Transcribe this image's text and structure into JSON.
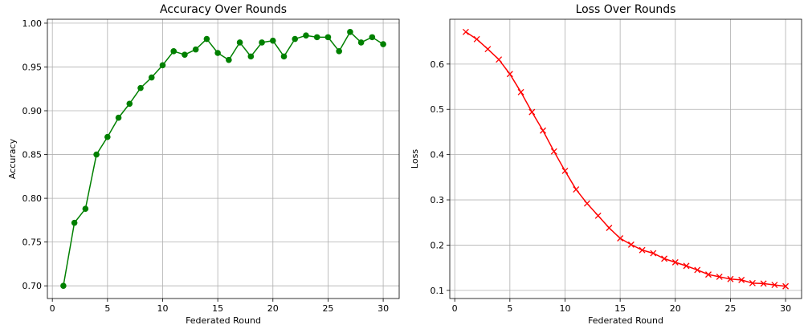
{
  "chart_data": [
    {
      "type": "line",
      "title": "Accuracy Over Rounds",
      "xlabel": "Federated Round",
      "ylabel": "Accuracy",
      "xlim": [
        -0.45,
        31.45
      ],
      "ylim": [
        0.6855,
        1.0045
      ],
      "xticks": [
        0,
        5,
        10,
        15,
        20,
        25,
        30
      ],
      "yticks": [
        0.7,
        0.75,
        0.8,
        0.85,
        0.9,
        0.95,
        1.0
      ],
      "ytick_labels": [
        "0.70",
        "0.75",
        "0.80",
        "0.85",
        "0.90",
        "0.95",
        "1.00"
      ],
      "grid": true,
      "marker": "circle",
      "color": "#008000",
      "series": [
        {
          "x": [
            1,
            2,
            3,
            4,
            5,
            6,
            7,
            8,
            9,
            10,
            11,
            12,
            13,
            14,
            15,
            16,
            17,
            18,
            19,
            20,
            21,
            22,
            23,
            24,
            25,
            26,
            27,
            28,
            29,
            30
          ],
          "values": [
            0.7,
            0.772,
            0.788,
            0.85,
            0.87,
            0.892,
            0.908,
            0.926,
            0.938,
            0.952,
            0.968,
            0.964,
            0.97,
            0.982,
            0.966,
            0.958,
            0.978,
            0.962,
            0.978,
            0.98,
            0.962,
            0.982,
            0.986,
            0.984,
            0.984,
            0.968,
            0.99,
            0.978,
            0.984,
            0.976
          ]
        }
      ]
    },
    {
      "type": "line",
      "title": "Loss Over Rounds",
      "xlabel": "Federated Round",
      "ylabel": "Loss",
      "xlim": [
        -0.45,
        31.45
      ],
      "ylim": [
        0.082,
        0.699
      ],
      "xticks": [
        0,
        5,
        10,
        15,
        20,
        25,
        30
      ],
      "yticks": [
        0.1,
        0.2,
        0.3,
        0.4,
        0.5,
        0.6
      ],
      "ytick_labels": [
        "0.1",
        "0.2",
        "0.3",
        "0.4",
        "0.5",
        "0.6"
      ],
      "grid": true,
      "marker": "x",
      "color": "#ff0000",
      "series": [
        {
          "x": [
            1,
            2,
            3,
            4,
            5,
            6,
            7,
            8,
            9,
            10,
            11,
            12,
            13,
            14,
            15,
            16,
            17,
            18,
            19,
            20,
            21,
            22,
            23,
            24,
            25,
            26,
            27,
            28,
            29,
            30
          ],
          "values": [
            0.671,
            0.655,
            0.633,
            0.61,
            0.578,
            0.538,
            0.494,
            0.453,
            0.407,
            0.364,
            0.323,
            0.292,
            0.265,
            0.238,
            0.215,
            0.201,
            0.189,
            0.182,
            0.17,
            0.162,
            0.154,
            0.145,
            0.135,
            0.13,
            0.125,
            0.123,
            0.116,
            0.115,
            0.112,
            0.109
          ]
        }
      ]
    }
  ]
}
